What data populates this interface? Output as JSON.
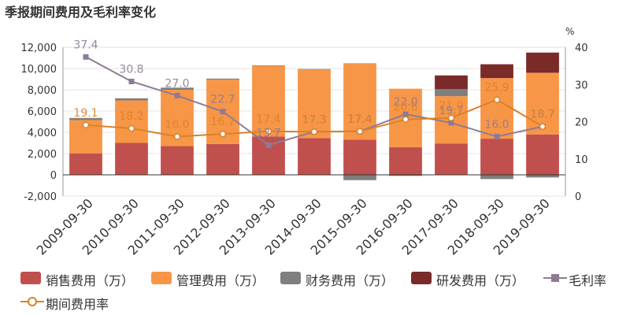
{
  "title": "季报期间费用及毛利率变化",
  "chart_data": {
    "type": "bar",
    "categories": [
      "2009-09-30",
      "2010-09-30",
      "2011-09-30",
      "2012-09-30",
      "2013-09-30",
      "2014-09-30",
      "2015-09-30",
      "2016-09-30",
      "2017-09-30",
      "2018-09-30",
      "2019-09-30"
    ],
    "stacked": true,
    "series": [
      {
        "name": "销售费用（万）",
        "type": "bar",
        "axis": "left",
        "color": "#c0504d",
        "values": [
          2000,
          3000,
          2700,
          2900,
          3600,
          3450,
          3300,
          2600,
          2950,
          3400,
          3800
        ]
      },
      {
        "name": "管理费用（万）",
        "type": "bar",
        "axis": "left",
        "color": "#f79646",
        "values": [
          3150,
          4000,
          5300,
          6050,
          6650,
          6450,
          7200,
          5500,
          4450,
          5700,
          5800
        ]
      },
      {
        "name": "财务费用（万）",
        "type": "bar",
        "axis": "left",
        "color": "#7f7f7f",
        "values": [
          200,
          200,
          200,
          100,
          50,
          50,
          -500,
          -100,
          650,
          -400,
          -250
        ]
      },
      {
        "name": "研发费用（万）",
        "type": "bar",
        "axis": "left",
        "color": "#7b2a2a",
        "values": [
          0,
          0,
          0,
          0,
          0,
          0,
          0,
          0,
          1300,
          1300,
          1900
        ]
      },
      {
        "name": "毛利率",
        "type": "line",
        "axis": "right",
        "color": "#8e7a96",
        "values": [
          37.4,
          30.8,
          27.0,
          22.7,
          13.7,
          17.3,
          17.4,
          22.0,
          19.7,
          16.0,
          18.7
        ]
      },
      {
        "name": "期间费用率",
        "type": "line",
        "axis": "right",
        "color": "#d9822b",
        "values": [
          19.1,
          18.2,
          16.0,
          16.7,
          17.4,
          17.3,
          17.4,
          20.6,
          21.0,
          25.9,
          18.7
        ]
      }
    ],
    "labels": {
      "毛利率": [
        "37.4",
        "30.8",
        "27.0",
        "22.7",
        "13.7",
        "17.3",
        "17.4",
        "22.0",
        "19.7",
        "16.0",
        "18.7"
      ],
      "期间费用率": [
        "19.1",
        "18.2",
        "16.0",
        "16.7",
        "17.4",
        "17.3",
        "17.4",
        "20.6",
        "21.0",
        "25.9",
        "18.7"
      ]
    },
    "y_left": {
      "ylim": [
        -2000,
        12000
      ],
      "ticks": [
        "-2,000",
        "0",
        "2,000",
        "4,000",
        "6,000",
        "8,000",
        "10,000",
        "12,000"
      ],
      "tick_values": [
        -2000,
        0,
        2000,
        4000,
        6000,
        8000,
        10000,
        12000
      ]
    },
    "y_right": {
      "ylim": [
        0,
        40
      ],
      "ticks": [
        "0",
        "10",
        "20",
        "30",
        "40"
      ],
      "tick_values": [
        0,
        10,
        20,
        30,
        40
      ],
      "unit": "%"
    },
    "grid": true,
    "legend_position": "bottom"
  }
}
